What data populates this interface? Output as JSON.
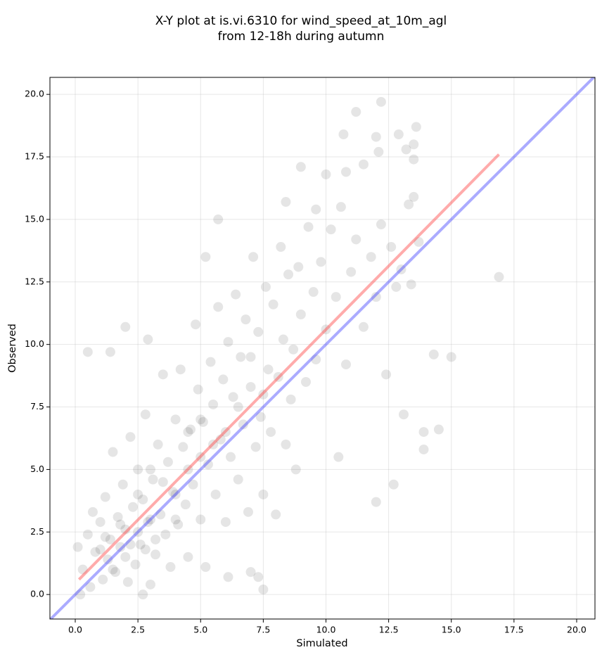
{
  "chart_data": {
    "type": "scatter",
    "title": [
      "X-Y plot at is.vi.6310 for wind_speed_at_10m_agl",
      "from 12-18h during autumn"
    ],
    "xlabel": "Simulated",
    "ylabel": "Observed",
    "xlim": [
      -1.01,
      20.73
    ],
    "ylim": [
      -0.98,
      20.68
    ],
    "xticks": [
      {
        "value": 0,
        "label": "0.0"
      },
      2.5,
      {
        "value": 5,
        "label": "5.0"
      },
      7.5,
      {
        "value": 10,
        "label": "10.0"
      },
      12.5,
      {
        "value": 15,
        "label": "15.0"
      },
      17.5,
      {
        "value": 20,
        "label": "20.0"
      }
    ],
    "yticks": [
      {
        "value": 0,
        "label": "0.0"
      },
      2.5,
      {
        "value": 5,
        "label": "5.0"
      },
      7.5,
      {
        "value": 10,
        "label": "10.0"
      },
      12.5,
      {
        "value": 15,
        "label": "15.0"
      },
      17.5,
      {
        "value": 20,
        "label": "20.0"
      }
    ],
    "grid": true,
    "point_color": "#000000",
    "x": [
      11.2,
      12.2,
      10.7,
      12.0,
      13.6,
      12.9,
      9.0,
      12.1,
      11.5,
      13.5,
      13.2,
      13.5,
      16.9,
      15.0,
      14.3,
      14.5,
      13.9,
      13.9,
      12.7,
      12.0,
      10.5,
      2.0,
      2.9,
      0.5,
      1.4,
      5.7,
      5.2,
      8.4,
      10.0,
      10.8,
      9.6,
      7.0,
      7.3,
      7.5,
      0.2,
      0.1,
      2.7,
      6.1,
      0.3,
      0.5,
      0.7,
      0.8,
      1.0,
      1.1,
      1.2,
      1.3,
      1.4,
      1.5,
      1.6,
      1.7,
      1.8,
      1.9,
      2.0,
      2.1,
      2.2,
      2.3,
      2.4,
      2.5,
      2.6,
      2.7,
      2.8,
      2.9,
      3.0,
      3.1,
      3.2,
      3.3,
      3.4,
      3.5,
      3.6,
      3.7,
      3.8,
      3.9,
      4.0,
      4.1,
      4.2,
      4.3,
      4.4,
      4.5,
      4.6,
      4.7,
      4.8,
      4.9,
      5.0,
      5.1,
      5.2,
      5.3,
      5.4,
      5.5,
      5.6,
      5.7,
      5.8,
      5.9,
      6.0,
      6.1,
      6.2,
      6.3,
      6.4,
      6.5,
      6.6,
      6.7,
      6.8,
      6.9,
      7.0,
      7.1,
      7.2,
      7.3,
      7.4,
      7.5,
      7.6,
      7.7,
      7.8,
      7.9,
      8.0,
      8.1,
      8.2,
      8.3,
      8.4,
      8.5,
      8.6,
      8.7,
      8.8,
      8.9,
      9.0,
      9.2,
      9.3,
      9.5,
      9.6,
      9.8,
      10.0,
      10.2,
      10.4,
      10.6,
      10.8,
      11.0,
      11.2,
      11.5,
      11.8,
      12.0,
      12.2,
      12.4,
      12.6,
      12.8,
      13.0,
      13.1,
      13.3,
      13.4,
      13.5,
      13.7,
      1.5,
      2.0,
      2.5,
      3.0,
      2.2,
      1.8,
      2.8,
      3.2,
      3.5,
      4.0,
      4.5,
      5.0,
      5.5,
      6.0,
      3.0,
      2.5,
      4.0,
      4.5,
      5.0,
      6.5,
      7.0,
      7.5,
      0.6,
      1.0,
      1.2
    ],
    "y": [
      19.3,
      19.7,
      18.4,
      18.3,
      18.7,
      18.4,
      17.1,
      17.7,
      17.2,
      17.4,
      17.8,
      18.0,
      12.7,
      9.5,
      9.6,
      6.6,
      6.5,
      5.8,
      4.4,
      3.7,
      5.5,
      10.7,
      10.2,
      9.7,
      9.7,
      15.0,
      13.5,
      15.7,
      16.8,
      16.9,
      15.4,
      0.9,
      0.7,
      0.2,
      0.0,
      1.9,
      0.0,
      0.7,
      1.0,
      2.4,
      3.3,
      1.7,
      2.9,
      0.6,
      3.9,
      1.4,
      2.2,
      5.7,
      0.9,
      3.1,
      1.9,
      4.4,
      2.6,
      0.5,
      6.3,
      3.5,
      1.2,
      5.0,
      2.0,
      3.8,
      7.2,
      2.9,
      0.4,
      4.6,
      1.6,
      6.0,
      3.2,
      8.8,
      2.4,
      5.3,
      1.1,
      4.1,
      7.0,
      2.8,
      9.0,
      5.9,
      3.6,
      1.5,
      6.6,
      4.4,
      10.8,
      8.2,
      3.0,
      6.9,
      1.1,
      5.2,
      9.3,
      7.6,
      4.0,
      11.5,
      6.2,
      8.6,
      2.9,
      10.1,
      5.5,
      7.9,
      12.0,
      4.6,
      9.5,
      6.8,
      11.0,
      3.3,
      8.3,
      13.5,
      5.9,
      10.5,
      7.1,
      4.0,
      12.3,
      9.0,
      6.5,
      11.6,
      3.2,
      8.7,
      13.9,
      10.2,
      6.0,
      12.8,
      7.8,
      9.8,
      5.0,
      13.1,
      11.2,
      8.5,
      14.7,
      12.1,
      9.4,
      13.3,
      10.6,
      14.6,
      11.9,
      15.5,
      9.2,
      12.9,
      14.2,
      10.7,
      13.5,
      11.9,
      14.8,
      8.8,
      13.9,
      12.3,
      13.0,
      7.2,
      15.6,
      12.4,
      15.9,
      14.1,
      1.0,
      1.5,
      2.5,
      3.0,
      2.0,
      2.8,
      1.8,
      2.2,
      4.5,
      4.0,
      5.0,
      5.5,
      6.0,
      6.5,
      5.0,
      4.0,
      3.0,
      6.5,
      7.0,
      7.5,
      9.5,
      8.0,
      0.3,
      1.8,
      2.3
    ],
    "lines": [
      {
        "color": "#ff4444",
        "x": [
          0.15,
          16.9
        ],
        "y": [
          0.6,
          17.6
        ]
      },
      {
        "color": "#4444ff",
        "x": [
          -1.01,
          20.73
        ],
        "y": [
          -1.01,
          20.73
        ]
      }
    ]
  }
}
